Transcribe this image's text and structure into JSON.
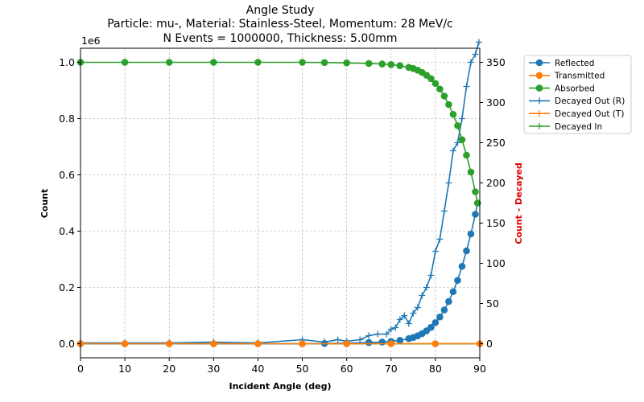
{
  "chart_data": {
    "type": "line",
    "title_lines": [
      "Angle Study",
      "Particle: mu-, Material: Stainless-Steel, Momentum: 28 MeV/c",
      "N Events = 1000000, Thickness: 5.00mm"
    ],
    "xlabel": "Incident Angle (deg)",
    "ylabel": "Count",
    "ylabel_right": "Count - Decayed",
    "y_offset_label": "1e6",
    "xlim": [
      0,
      90
    ],
    "ylim": [
      -0.05,
      1.05
    ],
    "ylim_right": [
      -17.5,
      367.5
    ],
    "x_ticks": [
      0,
      10,
      20,
      30,
      40,
      50,
      60,
      70,
      80,
      90
    ],
    "y_ticks": [
      0.0,
      0.2,
      0.4,
      0.6,
      0.8,
      1.0
    ],
    "y_tick_labels": [
      "0.0",
      "0.2",
      "0.4",
      "0.6",
      "0.8",
      "1.0"
    ],
    "y_right_ticks": [
      0,
      50,
      100,
      150,
      200,
      250,
      300,
      350
    ],
    "grid": true,
    "legend_position": "outside-right",
    "series": [
      {
        "name": "Reflected",
        "axis": "left",
        "color": "#1f77b4",
        "marker": "circle",
        "points": [
          [
            0,
            0.0
          ],
          [
            10,
            0.0
          ],
          [
            20,
            0.0
          ],
          [
            30,
            0.0
          ],
          [
            40,
            0.0
          ],
          [
            50,
            0.0
          ],
          [
            55,
            0.001
          ],
          [
            60,
            0.002
          ],
          [
            65,
            0.004
          ],
          [
            68,
            0.006
          ],
          [
            70,
            0.008
          ],
          [
            72,
            0.012
          ],
          [
            74,
            0.018
          ],
          [
            75,
            0.022
          ],
          [
            76,
            0.028
          ],
          [
            77,
            0.036
          ],
          [
            78,
            0.046
          ],
          [
            79,
            0.058
          ],
          [
            80,
            0.075
          ],
          [
            81,
            0.095
          ],
          [
            82,
            0.12
          ],
          [
            83,
            0.15
          ],
          [
            84,
            0.185
          ],
          [
            85,
            0.225
          ],
          [
            86,
            0.275
          ],
          [
            87,
            0.33
          ],
          [
            88,
            0.39
          ],
          [
            89,
            0.46
          ],
          [
            89.5,
            0.5
          ]
        ]
      },
      {
        "name": "Transmitted",
        "axis": "left",
        "color": "#ff7f0e",
        "marker": "circle",
        "points": [
          [
            0,
            0.0
          ],
          [
            10,
            0.0
          ],
          [
            20,
            0.0
          ],
          [
            30,
            0.0
          ],
          [
            40,
            0.0
          ],
          [
            50,
            0.0
          ],
          [
            60,
            0.0
          ],
          [
            70,
            0.0
          ],
          [
            80,
            0.0
          ],
          [
            90,
            0.0
          ]
        ]
      },
      {
        "name": "Absorbed",
        "axis": "left",
        "color": "#2ca02c",
        "marker": "circle",
        "points": [
          [
            0,
            1.0
          ],
          [
            10,
            1.0
          ],
          [
            20,
            1.0
          ],
          [
            30,
            1.0
          ],
          [
            40,
            1.0
          ],
          [
            50,
            1.0
          ],
          [
            55,
            0.999
          ],
          [
            60,
            0.998
          ],
          [
            65,
            0.996
          ],
          [
            68,
            0.994
          ],
          [
            70,
            0.992
          ],
          [
            72,
            0.988
          ],
          [
            74,
            0.982
          ],
          [
            75,
            0.978
          ],
          [
            76,
            0.972
          ],
          [
            77,
            0.964
          ],
          [
            78,
            0.954
          ],
          [
            79,
            0.942
          ],
          [
            80,
            0.925
          ],
          [
            81,
            0.905
          ],
          [
            82,
            0.88
          ],
          [
            83,
            0.85
          ],
          [
            84,
            0.815
          ],
          [
            85,
            0.775
          ],
          [
            86,
            0.725
          ],
          [
            87,
            0.67
          ],
          [
            88,
            0.61
          ],
          [
            89,
            0.54
          ],
          [
            89.5,
            0.5
          ]
        ]
      },
      {
        "name": "Decayed Out (R)",
        "axis": "right",
        "color": "#1f77b4",
        "marker": "plus",
        "points": [
          [
            0,
            1
          ],
          [
            10,
            1
          ],
          [
            20,
            1
          ],
          [
            30,
            2
          ],
          [
            40,
            1
          ],
          [
            50,
            5
          ],
          [
            55,
            2
          ],
          [
            58,
            5
          ],
          [
            60,
            3
          ],
          [
            63,
            5
          ],
          [
            65,
            10
          ],
          [
            67,
            12
          ],
          [
            69,
            12
          ],
          [
            70,
            18
          ],
          [
            71,
            20
          ],
          [
            72,
            30
          ],
          [
            73,
            35
          ],
          [
            74,
            25
          ],
          [
            75,
            38
          ],
          [
            76,
            45
          ],
          [
            77,
            60
          ],
          [
            78,
            70
          ],
          [
            79,
            85
          ],
          [
            80,
            115
          ],
          [
            81,
            130
          ],
          [
            82,
            165
          ],
          [
            83,
            200
          ],
          [
            84,
            240
          ],
          [
            85,
            250
          ],
          [
            86,
            280
          ],
          [
            87,
            320
          ],
          [
            88,
            350
          ],
          [
            89,
            360
          ],
          [
            89.8,
            375
          ]
        ]
      },
      {
        "name": "Decayed Out (T)",
        "axis": "right",
        "color": "#ff7f0e",
        "marker": "plus",
        "points": [
          [
            0,
            0
          ],
          [
            10,
            0
          ],
          [
            20,
            0
          ],
          [
            30,
            0
          ],
          [
            40,
            0
          ],
          [
            50,
            0
          ],
          [
            60,
            0
          ],
          [
            70,
            0
          ],
          [
            80,
            0
          ],
          [
            90,
            0
          ]
        ]
      },
      {
        "name": "Decayed In",
        "axis": "right",
        "color": "#2ca02c",
        "marker": "plus",
        "points": [
          [
            0,
            0
          ],
          [
            10,
            0
          ],
          [
            20,
            0
          ],
          [
            30,
            0
          ],
          [
            40,
            0
          ],
          [
            50,
            0
          ],
          [
            60,
            0
          ],
          [
            70,
            0
          ],
          [
            80,
            0
          ],
          [
            90,
            0
          ]
        ]
      }
    ]
  }
}
